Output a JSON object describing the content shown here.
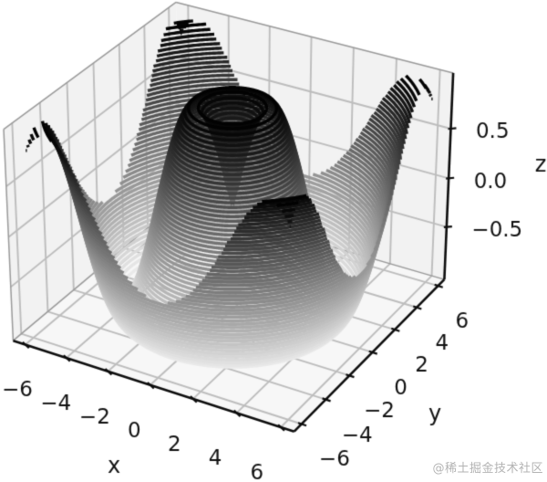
{
  "chart_data": {
    "type": "contour3d",
    "title": "",
    "function": "z = sin(sqrt(x^2 + y^2))",
    "x_range": [
      -6,
      6
    ],
    "y_range": [
      -6,
      6
    ],
    "z_data_range": [
      -1,
      1
    ],
    "grid_points": 30,
    "n_levels": 50,
    "colormap": "binary",
    "legend": "none",
    "view": {
      "elev": 30,
      "azim": -60,
      "projection": "persp"
    },
    "axes": {
      "xlabel": "x",
      "ylabel": "y",
      "zlabel": "z",
      "xticks": [
        -6,
        -4,
        -2,
        0,
        2,
        4,
        6
      ],
      "yticks": [
        -6,
        -4,
        -2,
        0,
        2,
        4,
        6
      ],
      "zticks": [
        -0.5,
        0,
        0.5
      ],
      "xtick_labels": [
        "−6",
        "−4",
        "−2",
        "0",
        "2",
        "4",
        "6"
      ],
      "ytick_labels": [
        "−6",
        "−4",
        "−2",
        "0",
        "2",
        "4",
        "6"
      ],
      "ztick_labels": [
        "−0.5",
        "0.0",
        "0.5"
      ],
      "xlim": [
        -6.6,
        6.6
      ],
      "ylim": [
        -6.6,
        6.6
      ],
      "zlim": [
        -1.05,
        1.05
      ],
      "grid": true
    },
    "colors": {
      "background": "#ffffff",
      "pane_wall": "#f2f2f2",
      "pane_floor": "#f7f7f7",
      "grid_line": "#bdbdbd",
      "pane_edge": "#9a9a9a",
      "axis_line": "#0d0d0d",
      "tick_label": "#111111",
      "contour_high": "#000000",
      "contour_low": "#ececec"
    }
  },
  "watermark": {
    "text": "@稀土掘金技术社区",
    "color": "#b3b3b3"
  }
}
